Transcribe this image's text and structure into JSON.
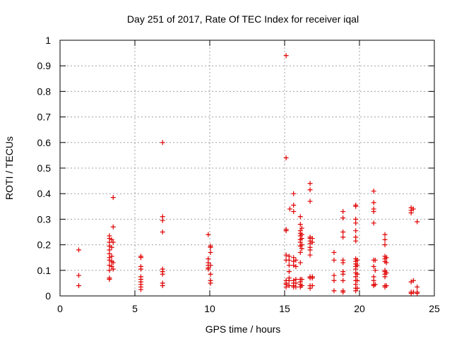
{
  "chart_data": {
    "type": "scatter",
    "title": "Day 251 of 2017, Rate Of TEC Index for receiver iqal",
    "xlabel": "GPS time / hours",
    "ylabel": "ROTI / TECUs",
    "xlim": [
      0,
      25
    ],
    "ylim": [
      0,
      1
    ],
    "xticks": [
      "0",
      "5",
      "10",
      "15",
      "20",
      "25"
    ],
    "yticks": [
      "0",
      "0.1",
      "0.2",
      "0.3",
      "0.4",
      "0.5",
      "0.6",
      "0.7",
      "0.8",
      "0.9",
      "1"
    ],
    "grid": true,
    "marker": "+",
    "color": "#e00000",
    "points": [
      [
        1.25,
        0.18
      ],
      [
        1.25,
        0.08
      ],
      [
        1.25,
        0.04
      ],
      [
        3.3,
        0.235
      ],
      [
        3.3,
        0.225
      ],
      [
        3.3,
        0.21
      ],
      [
        3.3,
        0.195
      ],
      [
        3.3,
        0.18
      ],
      [
        3.3,
        0.165
      ],
      [
        3.3,
        0.15
      ],
      [
        3.3,
        0.14
      ],
      [
        3.3,
        0.12
      ],
      [
        3.3,
        0.1
      ],
      [
        3.3,
        0.07
      ],
      [
        3.3,
        0.065
      ],
      [
        3.45,
        0.22
      ],
      [
        3.45,
        0.19
      ],
      [
        3.45,
        0.155
      ],
      [
        3.45,
        0.135
      ],
      [
        3.45,
        0.115
      ],
      [
        3.55,
        0.385
      ],
      [
        3.55,
        0.27
      ],
      [
        3.55,
        0.21
      ],
      [
        3.55,
        0.13
      ],
      [
        3.55,
        0.105
      ],
      [
        5.4,
        0.155
      ],
      [
        5.4,
        0.15
      ],
      [
        5.4,
        0.115
      ],
      [
        5.4,
        0.105
      ],
      [
        5.4,
        0.075
      ],
      [
        5.4,
        0.065
      ],
      [
        5.4,
        0.055
      ],
      [
        5.4,
        0.045
      ],
      [
        5.4,
        0.035
      ],
      [
        5.4,
        0.025
      ],
      [
        6.85,
        0.6
      ],
      [
        6.85,
        0.31
      ],
      [
        6.85,
        0.295
      ],
      [
        6.85,
        0.25
      ],
      [
        6.85,
        0.105
      ],
      [
        6.85,
        0.095
      ],
      [
        6.85,
        0.085
      ],
      [
        6.85,
        0.05
      ],
      [
        6.85,
        0.04
      ],
      [
        9.9,
        0.24
      ],
      [
        9.9,
        0.145
      ],
      [
        9.9,
        0.13
      ],
      [
        9.9,
        0.12
      ],
      [
        9.9,
        0.11
      ],
      [
        9.9,
        0.105
      ],
      [
        10.05,
        0.195
      ],
      [
        10.05,
        0.19
      ],
      [
        10.05,
        0.17
      ],
      [
        10.05,
        0.12
      ],
      [
        10.05,
        0.085
      ],
      [
        10.05,
        0.06
      ],
      [
        10.05,
        0.05
      ],
      [
        15.1,
        0.94
      ],
      [
        15.1,
        0.54
      ],
      [
        15.1,
        0.26
      ],
      [
        15.1,
        0.255
      ],
      [
        15.1,
        0.16
      ],
      [
        15.1,
        0.14
      ],
      [
        15.1,
        0.06
      ],
      [
        15.1,
        0.05
      ],
      [
        15.1,
        0.045
      ],
      [
        15.1,
        0.035
      ],
      [
        15.3,
        0.155
      ],
      [
        15.3,
        0.14
      ],
      [
        15.3,
        0.12
      ],
      [
        15.3,
        0.095
      ],
      [
        15.3,
        0.07
      ],
      [
        15.3,
        0.06
      ],
      [
        15.3,
        0.04
      ],
      [
        15.35,
        0.34
      ],
      [
        15.6,
        0.4
      ],
      [
        15.6,
        0.355
      ],
      [
        15.6,
        0.33
      ],
      [
        15.6,
        0.15
      ],
      [
        15.6,
        0.135
      ],
      [
        15.6,
        0.12
      ],
      [
        15.6,
        0.06
      ],
      [
        15.6,
        0.05
      ],
      [
        15.6,
        0.04
      ],
      [
        15.6,
        0.035
      ],
      [
        15.75,
        0.14
      ],
      [
        15.75,
        0.115
      ],
      [
        15.75,
        0.065
      ],
      [
        15.75,
        0.05
      ],
      [
        15.75,
        0.035
      ],
      [
        16.05,
        0.31
      ],
      [
        16.05,
        0.28
      ],
      [
        16.05,
        0.255
      ],
      [
        16.05,
        0.245
      ],
      [
        16.05,
        0.235
      ],
      [
        16.05,
        0.22
      ],
      [
        16.05,
        0.21
      ],
      [
        16.05,
        0.195
      ],
      [
        16.05,
        0.17
      ],
      [
        16.05,
        0.13
      ],
      [
        16.05,
        0.065
      ],
      [
        16.05,
        0.055
      ],
      [
        16.05,
        0.045
      ],
      [
        16.05,
        0.035
      ],
      [
        16.15,
        0.265
      ],
      [
        16.15,
        0.24
      ],
      [
        16.15,
        0.225
      ],
      [
        16.15,
        0.2
      ],
      [
        16.15,
        0.185
      ],
      [
        16.15,
        0.065
      ],
      [
        16.15,
        0.04
      ],
      [
        16.7,
        0.44
      ],
      [
        16.7,
        0.415
      ],
      [
        16.7,
        0.37
      ],
      [
        16.7,
        0.23
      ],
      [
        16.7,
        0.225
      ],
      [
        16.7,
        0.215
      ],
      [
        16.7,
        0.205
      ],
      [
        16.7,
        0.19
      ],
      [
        16.7,
        0.18
      ],
      [
        16.7,
        0.16
      ],
      [
        16.7,
        0.075
      ],
      [
        16.7,
        0.07
      ],
      [
        16.7,
        0.04
      ],
      [
        16.7,
        0.03
      ],
      [
        16.85,
        0.225
      ],
      [
        16.85,
        0.21
      ],
      [
        16.85,
        0.075
      ],
      [
        16.85,
        0.07
      ],
      [
        16.85,
        0.04
      ],
      [
        18.3,
        0.17
      ],
      [
        18.3,
        0.14
      ],
      [
        18.3,
        0.08
      ],
      [
        18.3,
        0.06
      ],
      [
        18.3,
        0.02
      ],
      [
        18.9,
        0.33
      ],
      [
        18.9,
        0.305
      ],
      [
        18.9,
        0.25
      ],
      [
        18.9,
        0.23
      ],
      [
        18.9,
        0.14
      ],
      [
        18.9,
        0.13
      ],
      [
        18.9,
        0.095
      ],
      [
        18.9,
        0.085
      ],
      [
        18.9,
        0.06
      ],
      [
        18.9,
        0.02
      ],
      [
        18.9,
        0.015
      ],
      [
        19.75,
        0.355
      ],
      [
        19.75,
        0.35
      ],
      [
        19.75,
        0.3
      ],
      [
        19.75,
        0.285
      ],
      [
        19.75,
        0.255
      ],
      [
        19.75,
        0.23
      ],
      [
        19.75,
        0.215
      ],
      [
        19.75,
        0.145
      ],
      [
        19.75,
        0.135
      ],
      [
        19.75,
        0.125
      ],
      [
        19.75,
        0.115
      ],
      [
        19.75,
        0.105
      ],
      [
        19.75,
        0.09
      ],
      [
        19.75,
        0.075
      ],
      [
        19.75,
        0.06
      ],
      [
        19.75,
        0.045
      ],
      [
        19.75,
        0.03
      ],
      [
        19.75,
        0.02
      ],
      [
        19.85,
        0.14
      ],
      [
        19.85,
        0.12
      ],
      [
        19.85,
        0.085
      ],
      [
        19.85,
        0.06
      ],
      [
        19.85,
        0.03
      ],
      [
        20.95,
        0.41
      ],
      [
        20.95,
        0.365
      ],
      [
        20.95,
        0.34
      ],
      [
        20.95,
        0.33
      ],
      [
        20.95,
        0.285
      ],
      [
        20.95,
        0.14
      ],
      [
        20.95,
        0.115
      ],
      [
        20.95,
        0.075
      ],
      [
        20.95,
        0.06
      ],
      [
        20.95,
        0.045
      ],
      [
        20.95,
        0.04
      ],
      [
        21.05,
        0.14
      ],
      [
        21.05,
        0.1
      ],
      [
        21.05,
        0.045
      ],
      [
        21.7,
        0.24
      ],
      [
        21.7,
        0.22
      ],
      [
        21.7,
        0.2
      ],
      [
        21.7,
        0.155
      ],
      [
        21.7,
        0.145
      ],
      [
        21.7,
        0.135
      ],
      [
        21.7,
        0.1
      ],
      [
        21.7,
        0.095
      ],
      [
        21.7,
        0.085
      ],
      [
        21.7,
        0.075
      ],
      [
        21.7,
        0.04
      ],
      [
        21.7,
        0.035
      ],
      [
        21.8,
        0.15
      ],
      [
        21.8,
        0.13
      ],
      [
        21.8,
        0.09
      ],
      [
        21.8,
        0.04
      ],
      [
        23.45,
        0.345
      ],
      [
        23.45,
        0.335
      ],
      [
        23.45,
        0.325
      ],
      [
        23.45,
        0.055
      ],
      [
        23.45,
        0.015
      ],
      [
        23.45,
        0.01
      ],
      [
        23.6,
        0.34
      ],
      [
        23.6,
        0.06
      ],
      [
        23.6,
        0.015
      ],
      [
        23.85,
        0.29
      ],
      [
        23.85,
        0.035
      ],
      [
        23.85,
        0.015
      ],
      [
        23.85,
        0.01
      ]
    ]
  }
}
